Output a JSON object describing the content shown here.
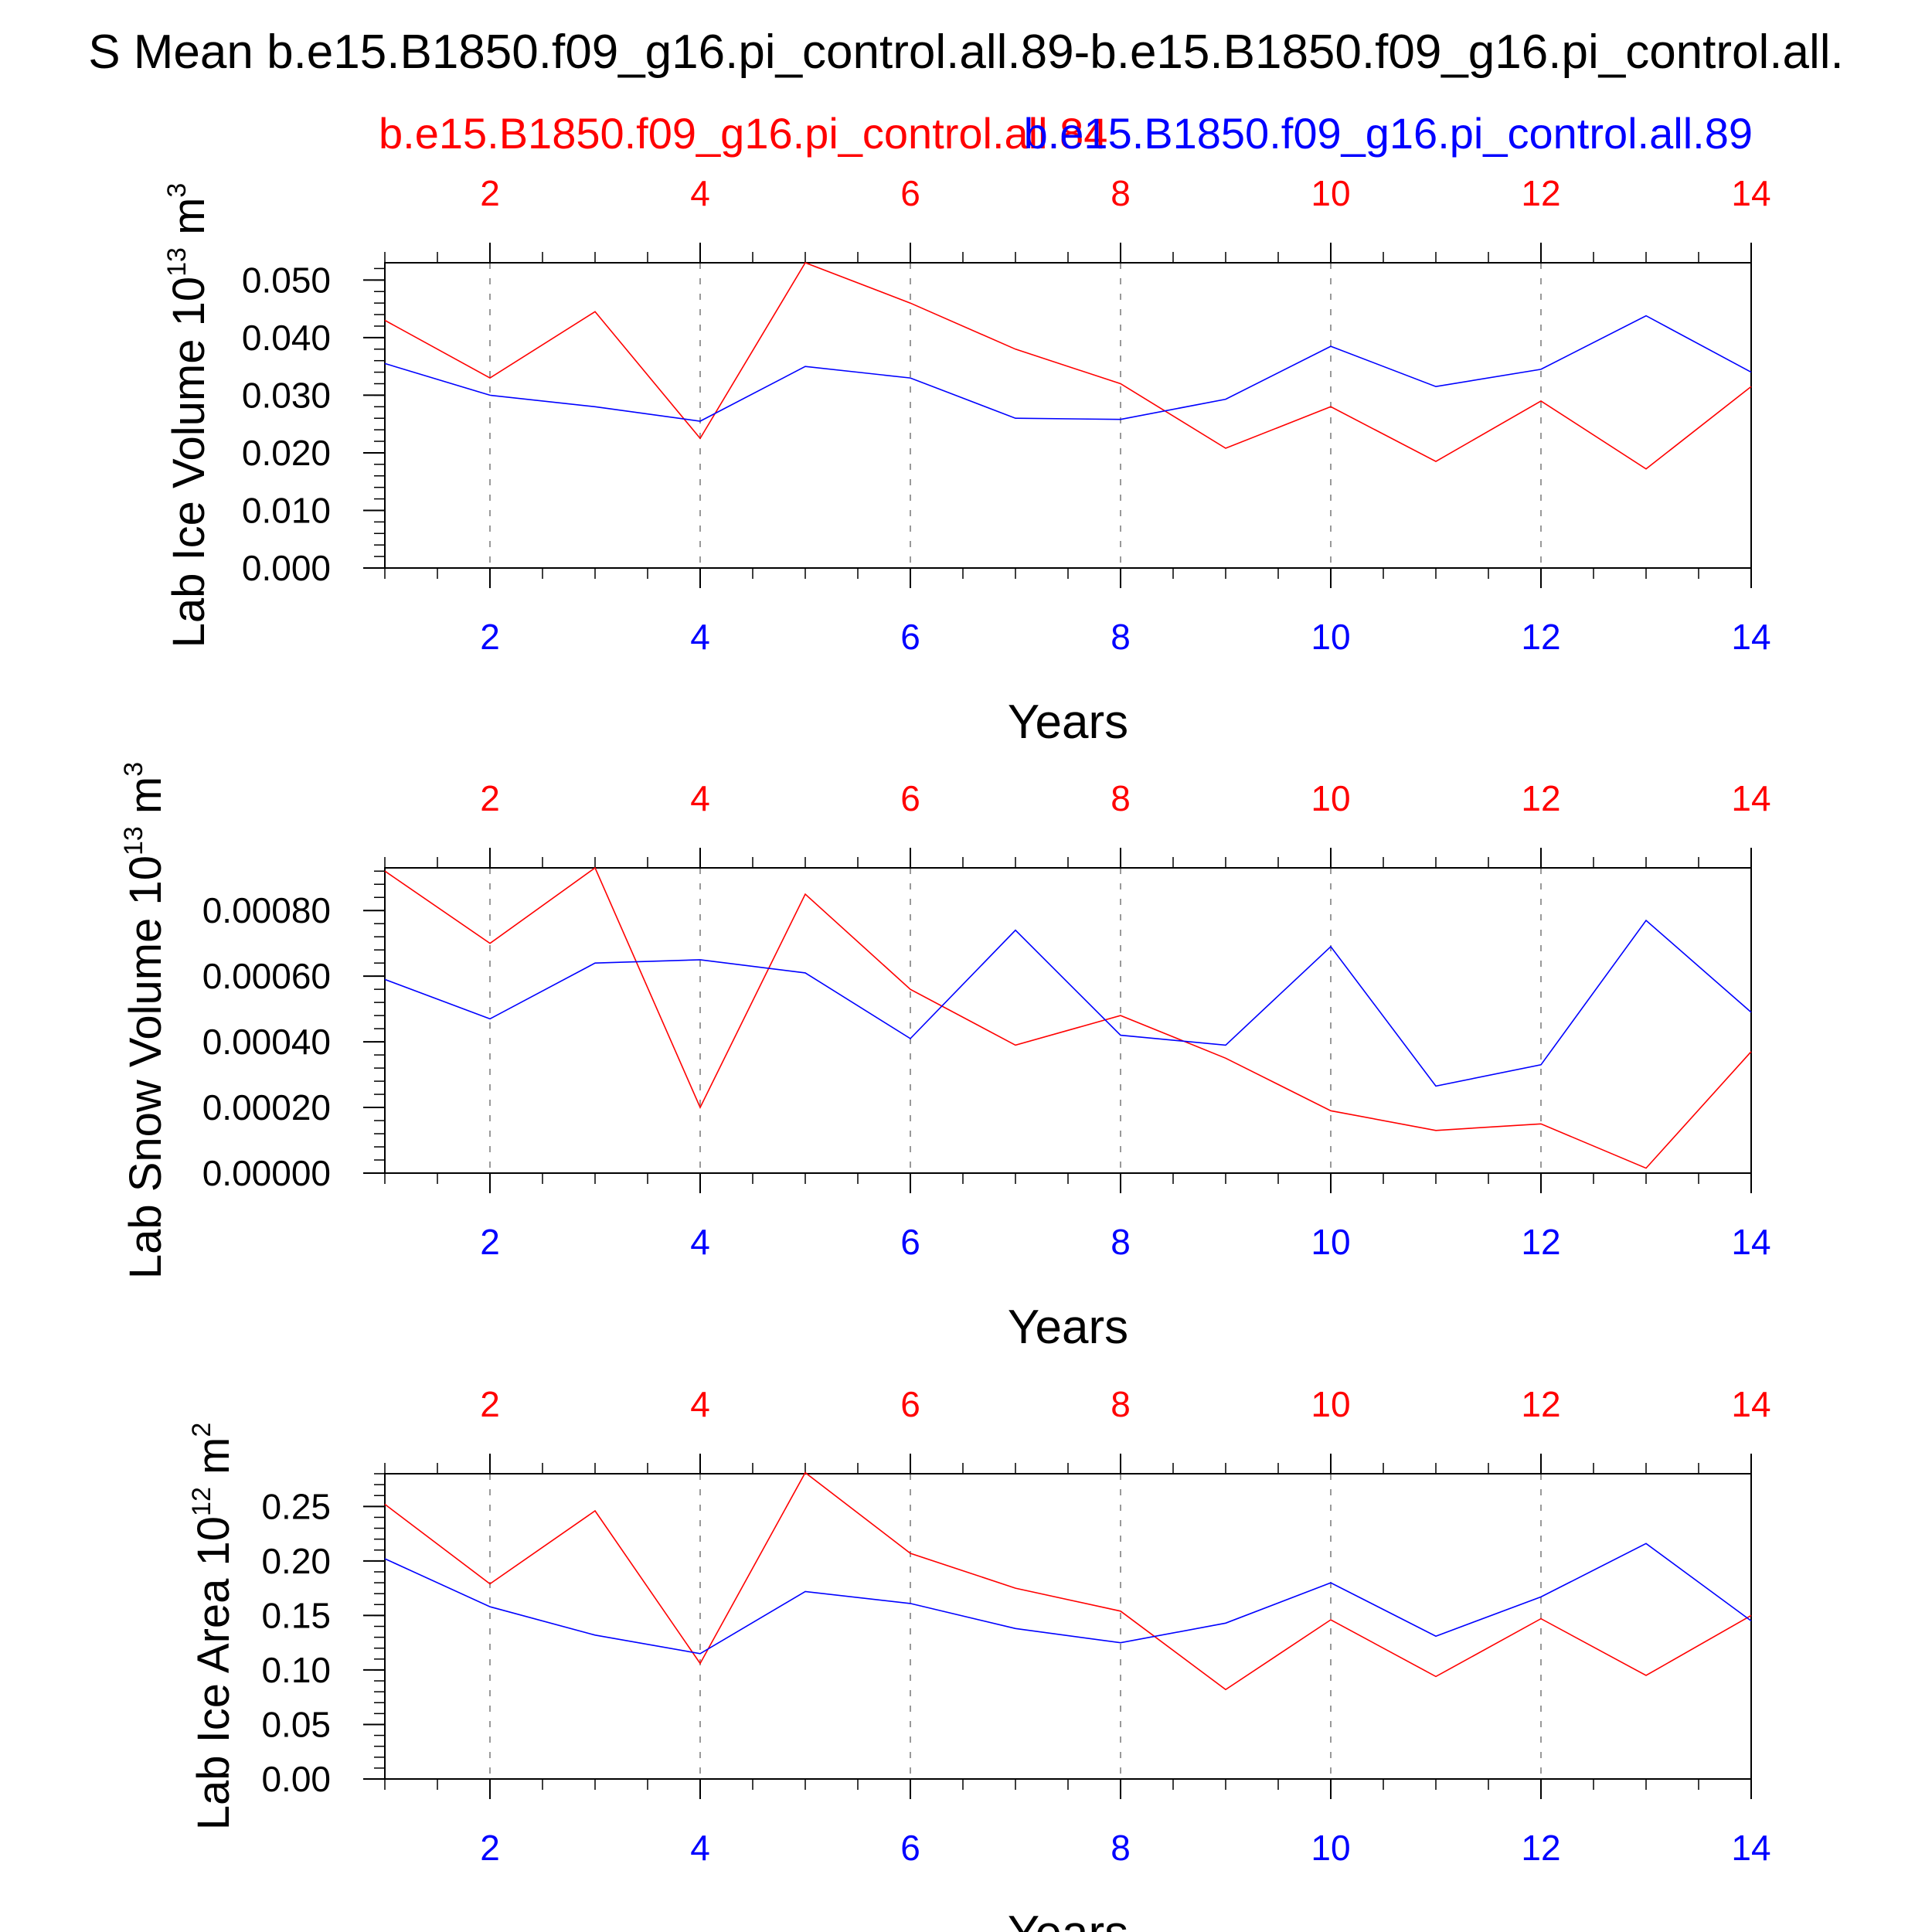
{
  "title": "S Mean b.e15.B1850.f09_g16.pi_control.all.89-b.e15.B1850.f09_g16.pi_control.all.",
  "case_red": "b.e15.B1850.f09_g16.pi_control.all.84",
  "case_blue": "b.e15.B1850.f09_g16.pi_control.all.89",
  "colors": {
    "red": "#ff0000",
    "blue": "#0000ff",
    "axis": "#000000",
    "grid": "#999999"
  },
  "chart_data": [
    {
      "type": "line",
      "ylabel_main": "Lab Ice Volume 10",
      "ylabel_exp": "13",
      "ylabel_unit": "m",
      "ylabel_unit_exp": "3",
      "xlabel": "Years",
      "xlim": [
        1,
        14
      ],
      "ylim": [
        0,
        0.053
      ],
      "ytick_values": [
        0,
        0.01,
        0.02,
        0.03,
        0.04,
        0.05
      ],
      "ytick_labels": [
        "0.000",
        "0.010",
        "0.020",
        "0.030",
        "0.040",
        "0.050"
      ],
      "xticks": [
        2,
        4,
        6,
        8,
        10,
        12,
        14
      ],
      "x": [
        1,
        2,
        3,
        4,
        5,
        6,
        7,
        8,
        9,
        10,
        11,
        12,
        13,
        14
      ],
      "series": [
        {
          "color": "red",
          "values": [
            0.043,
            0.033,
            0.0445,
            0.0225,
            0.053,
            0.046,
            0.038,
            0.032,
            0.0208,
            0.028,
            0.0185,
            0.029,
            0.0172,
            0.0315
          ]
        },
        {
          "color": "blue",
          "values": [
            0.0355,
            0.03,
            0.028,
            0.0255,
            0.035,
            0.033,
            0.026,
            0.0258,
            0.0293,
            0.0385,
            0.0315,
            0.0345,
            0.0438,
            0.034
          ]
        }
      ]
    },
    {
      "type": "line",
      "ylabel_main": "Lab Snow Volume 10",
      "ylabel_exp": "13",
      "ylabel_unit": "m",
      "ylabel_unit_exp": "3",
      "xlabel": "Years",
      "xlim": [
        1,
        14
      ],
      "ylim": [
        0,
        0.00093
      ],
      "ytick_values": [
        0,
        0.0002,
        0.0004,
        0.0006,
        0.0008
      ],
      "ytick_labels": [
        "0.00000",
        "0.00020",
        "0.00040",
        "0.00060",
        "0.00080"
      ],
      "xticks": [
        2,
        4,
        6,
        8,
        10,
        12,
        14
      ],
      "x": [
        1,
        2,
        3,
        4,
        5,
        6,
        7,
        8,
        9,
        10,
        11,
        12,
        13,
        14
      ],
      "series": [
        {
          "color": "red",
          "values": [
            0.00092,
            0.0007,
            0.00093,
            0.0002,
            0.00085,
            0.00056,
            0.00039,
            0.00048,
            0.00035,
            0.00019,
            0.00013,
            0.00015,
            1.5e-05,
            0.00037
          ]
        },
        {
          "color": "blue",
          "values": [
            0.00059,
            0.00047,
            0.00064,
            0.00065,
            0.00061,
            0.00041,
            0.00074,
            0.00042,
            0.00039,
            0.00069,
            0.000265,
            0.00033,
            0.00077,
            0.00049
          ]
        }
      ]
    },
    {
      "type": "line",
      "ylabel_main": "Lab Ice Area 10",
      "ylabel_exp": "12",
      "ylabel_unit": "m",
      "ylabel_unit_exp": "2",
      "xlabel": "Years",
      "xlim": [
        1,
        14
      ],
      "ylim": [
        0,
        0.28
      ],
      "ytick_values": [
        0,
        0.05,
        0.1,
        0.15,
        0.2,
        0.25
      ],
      "ytick_labels": [
        "0.00",
        "0.05",
        "0.10",
        "0.15",
        "0.20",
        "0.25"
      ],
      "xticks": [
        2,
        4,
        6,
        8,
        10,
        12,
        14
      ],
      "x": [
        1,
        2,
        3,
        4,
        5,
        6,
        7,
        8,
        9,
        10,
        11,
        12,
        13,
        14
      ],
      "series": [
        {
          "color": "red",
          "values": [
            0.252,
            0.179,
            0.246,
            0.106,
            0.281,
            0.207,
            0.175,
            0.154,
            0.082,
            0.146,
            0.094,
            0.147,
            0.095,
            0.15
          ]
        },
        {
          "color": "blue",
          "values": [
            0.202,
            0.158,
            0.132,
            0.115,
            0.172,
            0.161,
            0.138,
            0.125,
            0.143,
            0.18,
            0.131,
            0.167,
            0.216,
            0.145
          ]
        }
      ]
    }
  ]
}
